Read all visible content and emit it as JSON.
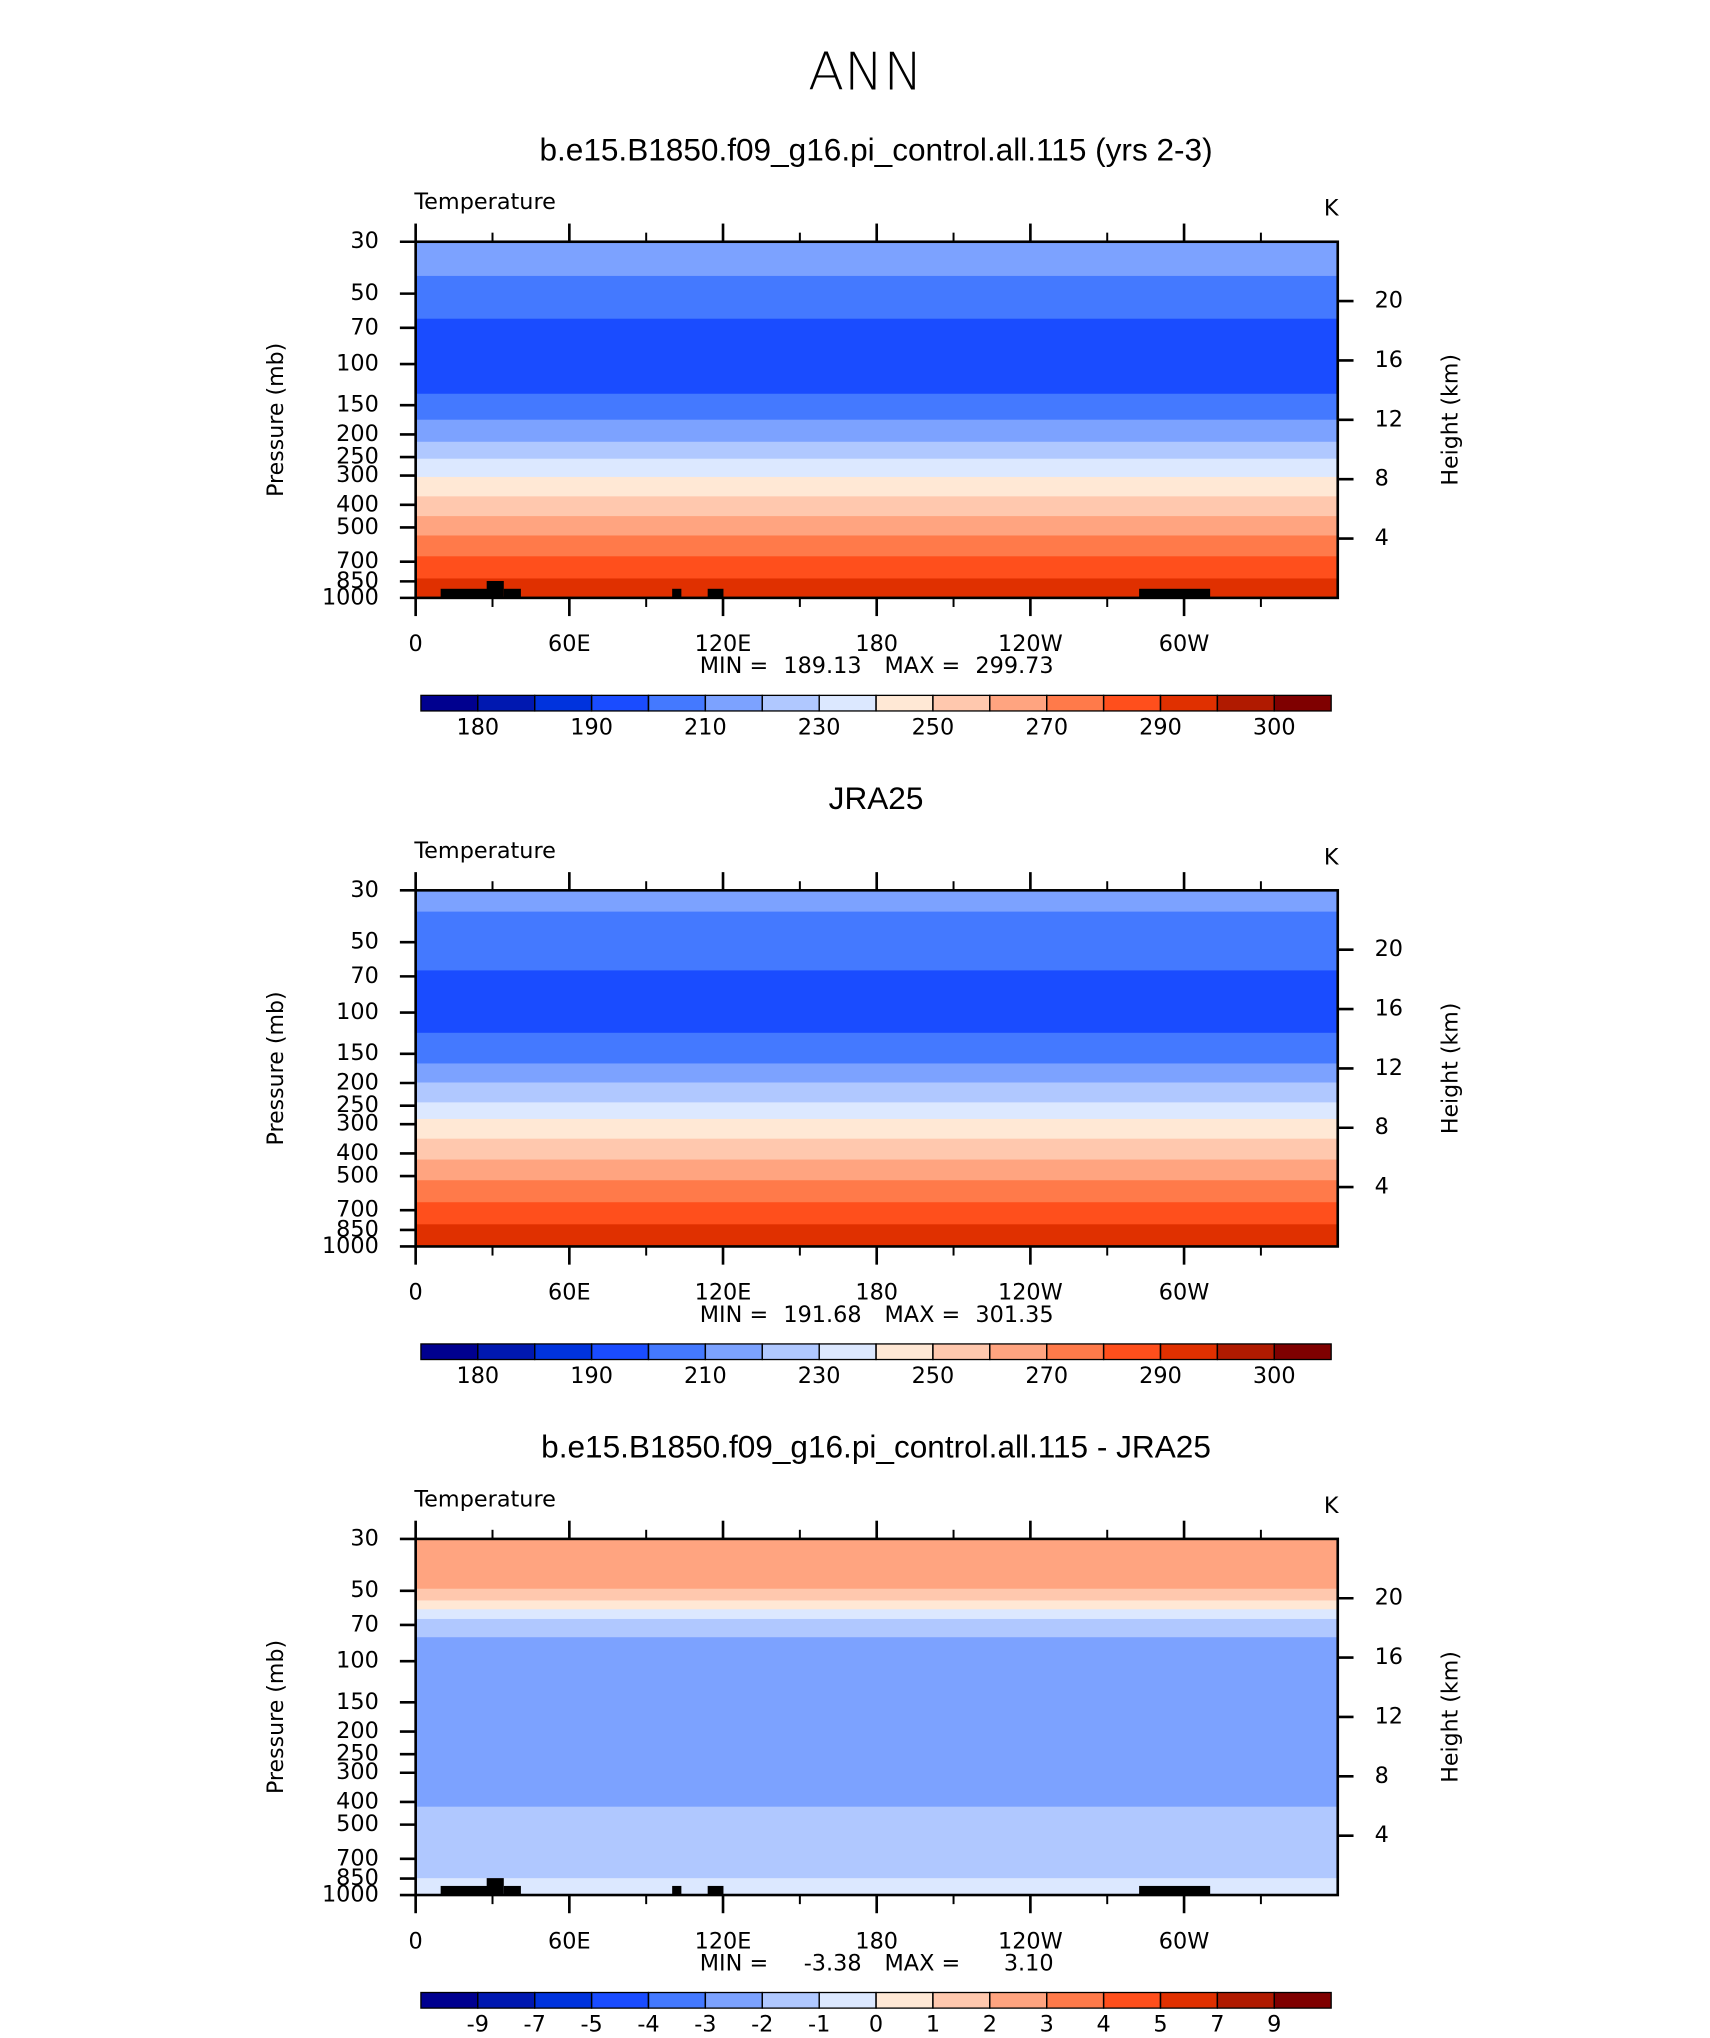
{
  "title": "ANN",
  "chart_data": [
    {
      "type": "contour",
      "title": "b.e15.B1850.f09_g16.pi_control.all.115 (yrs 2-3)",
      "subtitle": "Temperature",
      "units": "K",
      "ylabel": "Pressure (mb)",
      "y2label": "Height (km)",
      "log_y": true,
      "ylim": [
        1000,
        30
      ],
      "yticks": [
        30,
        50,
        70,
        100,
        150,
        200,
        250,
        300,
        400,
        500,
        700,
        850,
        1000
      ],
      "y2lim": [
        0,
        24
      ],
      "y2ticks": [
        4,
        8,
        12,
        16,
        20
      ],
      "xlim": [
        0,
        360
      ],
      "xticks": [
        0,
        {
          "value": 60,
          "label": "60E"
        },
        {
          "value": 120,
          "label": "120E"
        },
        180,
        {
          "value": 240,
          "label": "120W"
        },
        {
          "value": 300,
          "label": "60W"
        }
      ],
      "land_mask": true,
      "levels": [
        180,
        185,
        190,
        200,
        210,
        220,
        230,
        240,
        250,
        260,
        270,
        280,
        290,
        295,
        300
      ],
      "level_labels": [
        180,
        190,
        210,
        230,
        250,
        270,
        290,
        300
      ],
      "colors": [
        "#00008f",
        "#0018b0",
        "#0033dd",
        "#1a4cff",
        "#4479ff",
        "#7ca2ff",
        "#b0c8ff",
        "#dce8ff",
        "#ffe8d5",
        "#ffc8ae",
        "#ffa480",
        "#ff7a4a",
        "#ff4f1c",
        "#e03000",
        "#b01a00",
        "#7f0000"
      ],
      "field": {
        "pressure_edges": [
          30,
          42,
          64,
          134,
          173,
          215,
          254,
          304,
          368,
          447,
          541,
          664,
          826,
          1000
        ],
        "values": [
          215,
          205,
          195,
          205,
          215,
          225,
          235,
          245,
          255,
          265,
          275,
          285,
          292
        ]
      },
      "min_text": "MIN =",
      "min": 189.13,
      "max_text": "MAX =",
      "max": 299.73
    },
    {
      "type": "contour",
      "title": "JRA25",
      "subtitle": "Temperature",
      "units": "K",
      "ylabel": "Pressure (mb)",
      "y2label": "Height (km)",
      "log_y": true,
      "ylim": [
        1000,
        30
      ],
      "yticks": [
        30,
        50,
        70,
        100,
        150,
        200,
        250,
        300,
        400,
        500,
        700,
        850,
        1000
      ],
      "y2lim": [
        0,
        24
      ],
      "y2ticks": [
        4,
        8,
        12,
        16,
        20
      ],
      "xlim": [
        0,
        360
      ],
      "xticks": [
        0,
        {
          "value": 60,
          "label": "60E"
        },
        {
          "value": 120,
          "label": "120E"
        },
        180,
        {
          "value": 240,
          "label": "120W"
        },
        {
          "value": 300,
          "label": "60W"
        }
      ],
      "land_mask": false,
      "levels": [
        180,
        185,
        190,
        200,
        210,
        220,
        230,
        240,
        250,
        260,
        270,
        280,
        290,
        295,
        300
      ],
      "level_labels": [
        180,
        190,
        210,
        230,
        250,
        270,
        290,
        300
      ],
      "colors": [
        "#00008f",
        "#0018b0",
        "#0033dd",
        "#1a4cff",
        "#4479ff",
        "#7ca2ff",
        "#b0c8ff",
        "#dce8ff",
        "#ffe8d5",
        "#ffc8ae",
        "#ffa480",
        "#ff7a4a",
        "#ff4f1c",
        "#e03000",
        "#b01a00",
        "#7f0000"
      ],
      "field": {
        "pressure_edges": [
          30,
          37,
          66,
          122,
          165,
          199,
          242,
          285,
          346,
          425,
          521,
          647,
          804,
          1000
        ],
        "values": [
          215,
          205,
          195,
          205,
          215,
          225,
          235,
          245,
          255,
          265,
          275,
          285,
          292
        ]
      },
      "min_text": "MIN =",
      "min": 191.68,
      "max_text": "MAX =",
      "max": 301.35
    },
    {
      "type": "contour",
      "title": "b.e15.B1850.f09_g16.pi_control.all.115 - JRA25",
      "subtitle": "Temperature",
      "units": "K",
      "ylabel": "Pressure (mb)",
      "y2label": "Height (km)",
      "log_y": true,
      "ylim": [
        1000,
        30
      ],
      "yticks": [
        30,
        50,
        70,
        100,
        150,
        200,
        250,
        300,
        400,
        500,
        700,
        850,
        1000
      ],
      "y2lim": [
        0,
        24
      ],
      "y2ticks": [
        4,
        8,
        12,
        16,
        20
      ],
      "xlim": [
        0,
        360
      ],
      "xticks": [
        0,
        {
          "value": 60,
          "label": "60E"
        },
        {
          "value": 120,
          "label": "120E"
        },
        180,
        {
          "value": 240,
          "label": "120W"
        },
        {
          "value": 300,
          "label": "60W"
        }
      ],
      "land_mask": true,
      "levels": [
        -9,
        -7,
        -5,
        -4,
        -3,
        -2,
        -1,
        0,
        1,
        2,
        3,
        4,
        5,
        7,
        9
      ],
      "level_labels": [
        -9,
        -7,
        -5,
        -4,
        -3,
        -2,
        -1,
        0,
        1,
        2,
        3,
        4,
        5,
        7,
        9
      ],
      "colors": [
        "#00008f",
        "#0018b0",
        "#0033dd",
        "#1a4cff",
        "#4479ff",
        "#7ca2ff",
        "#b0c8ff",
        "#dce8ff",
        "#ffe8d5",
        "#ffc8ae",
        "#ffa480",
        "#ff7a4a",
        "#ff4f1c",
        "#e03000",
        "#b01a00",
        "#7f0000"
      ],
      "field": {
        "pressure_edges": [
          30,
          49,
          55,
          60,
          66,
          79,
          419,
          847,
          1000
        ],
        "values": [
          2.5,
          1.5,
          0.5,
          -0.5,
          -1.5,
          -2.5,
          -1.5,
          -0.5
        ]
      },
      "min_text": "MIN =",
      "min": -3.38,
      "max_text": "MAX =",
      "max": {
        "value": 3.1,
        "label": "3.10"
      }
    }
  ]
}
